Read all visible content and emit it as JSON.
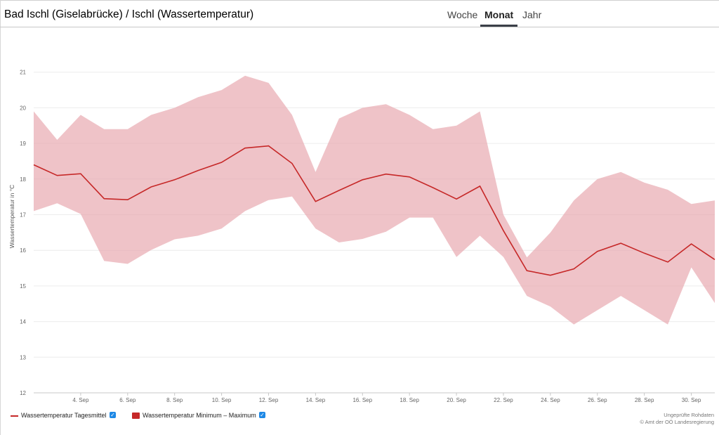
{
  "header": {
    "title": "Bad Ischl (Giselabrücke) / Ischl (Wassertemperatur)",
    "tabs": [
      {
        "label": "Woche",
        "active": false
      },
      {
        "label": "Monat",
        "active": true
      },
      {
        "label": "Jahr",
        "active": false
      }
    ]
  },
  "colors": {
    "line": "#c62828",
    "range_fill": "#e8a9b0",
    "checkbox": "#1e88e5"
  },
  "legend": {
    "mean_label": "Wassertemperatur Tagesmittel",
    "range_label": "Wassertemperatur Minimum – Maximum"
  },
  "credits": {
    "line1": "Ungeprüfte Rohdaten",
    "line2": "© Amt der OÖ Landesregierung"
  },
  "chart_data": {
    "type": "area",
    "ylabel": "Wassertemperatur in °C",
    "ylim": [
      12,
      22
    ],
    "yticks": [
      "12",
      "13",
      "14",
      "15",
      "16",
      "17",
      "18",
      "19",
      "20",
      "21"
    ],
    "xlim": [
      2,
      31
    ],
    "xticks": [
      {
        "day": 4,
        "label": "4. Sep"
      },
      {
        "day": 6,
        "label": "6. Sep"
      },
      {
        "day": 8,
        "label": "8. Sep"
      },
      {
        "day": 10,
        "label": "10. Sep"
      },
      {
        "day": 12,
        "label": "12. Sep"
      },
      {
        "day": 14,
        "label": "14. Sep"
      },
      {
        "day": 16,
        "label": "16. Sep"
      },
      {
        "day": 18,
        "label": "18. Sep"
      },
      {
        "day": 20,
        "label": "20. Sep"
      },
      {
        "day": 22,
        "label": "22. Sep"
      },
      {
        "day": 24,
        "label": "24. Sep"
      },
      {
        "day": 26,
        "label": "26. Sep"
      },
      {
        "day": 28,
        "label": "28. Sep"
      },
      {
        "day": 30,
        "label": "30. Sep"
      }
    ],
    "grid": true,
    "legend_position": "bottom-left",
    "days": [
      2,
      3,
      4,
      5,
      6,
      7,
      8,
      9,
      10,
      11,
      12,
      13,
      14,
      15,
      16,
      17,
      18,
      19,
      20,
      21,
      22,
      23,
      24,
      25,
      26,
      27,
      28,
      29,
      30,
      31
    ],
    "series": [
      {
        "name": "Wassertemperatur Tagesmittel",
        "type": "line",
        "values": [
          18.4,
          18.1,
          18.15,
          17.45,
          17.42,
          17.78,
          17.98,
          18.24,
          18.47,
          18.87,
          18.93,
          18.44,
          17.37,
          17.68,
          17.98,
          18.14,
          18.06,
          17.76,
          17.44,
          17.8,
          16.55,
          15.43,
          15.3,
          15.48,
          15.97,
          16.2,
          15.92,
          15.67,
          16.18,
          15.74
        ]
      },
      {
        "name": "Wassertemperatur Minimum – Maximum",
        "type": "range",
        "min": [
          17.1,
          17.32,
          17.02,
          15.7,
          15.62,
          16.01,
          16.31,
          16.41,
          16.61,
          17.1,
          17.41,
          17.51,
          16.61,
          16.22,
          16.32,
          16.52,
          16.92,
          16.92,
          15.81,
          16.41,
          15.81,
          14.72,
          14.42,
          13.92,
          14.32,
          14.72,
          14.32,
          13.92,
          15.52,
          14.52
        ],
        "max": [
          19.9,
          19.1,
          19.8,
          19.4,
          19.4,
          19.8,
          20.0,
          20.3,
          20.5,
          20.9,
          20.7,
          19.8,
          18.2,
          19.7,
          20.0,
          20.1,
          19.8,
          19.4,
          19.5,
          19.9,
          17.0,
          15.8,
          16.5,
          17.4,
          18.0,
          18.2,
          17.9,
          17.7,
          17.3,
          17.4
        ]
      }
    ]
  }
}
